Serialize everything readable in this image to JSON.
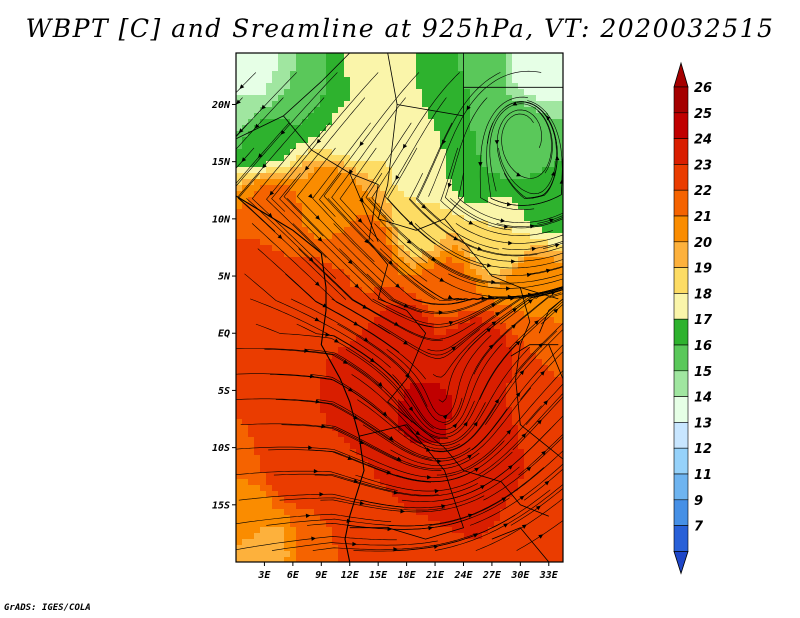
{
  "title": "WBPT [C] and Sreamline at 925hPa, VT: 2020032515",
  "footer": "GrADS: IGES/COLA",
  "map": {
    "lon_range": [
      0,
      34.5
    ],
    "lat_range": [
      -20,
      24.5
    ],
    "lat_ticks": [
      {
        "value": 20,
        "label": "20N"
      },
      {
        "value": 15,
        "label": "15N"
      },
      {
        "value": 10,
        "label": "10N"
      },
      {
        "value": 5,
        "label": "5N"
      },
      {
        "value": 0,
        "label": "EQ"
      },
      {
        "value": -5,
        "label": "5S"
      },
      {
        "value": -10,
        "label": "10S"
      },
      {
        "value": -15,
        "label": "15S"
      }
    ],
    "lon_ticks": [
      {
        "value": 3,
        "label": "3E"
      },
      {
        "value": 6,
        "label": "6E"
      },
      {
        "value": 9,
        "label": "9E"
      },
      {
        "value": 12,
        "label": "12E"
      },
      {
        "value": 15,
        "label": "15E"
      },
      {
        "value": 18,
        "label": "18E"
      },
      {
        "value": 21,
        "label": "21E"
      },
      {
        "value": 24,
        "label": "24E"
      },
      {
        "value": 27,
        "label": "27E"
      },
      {
        "value": 30,
        "label": "30E"
      },
      {
        "value": 33,
        "label": "33E"
      }
    ]
  },
  "colorbar": {
    "levels": [
      {
        "label": "26",
        "color": "#a50000"
      },
      {
        "label": "25",
        "color": "#c00000"
      },
      {
        "label": "24",
        "color": "#d91e00"
      },
      {
        "label": "23",
        "color": "#ea3c00"
      },
      {
        "label": "22",
        "color": "#f56300"
      },
      {
        "label": "21",
        "color": "#fa8c00"
      },
      {
        "label": "20",
        "color": "#fdb13c"
      },
      {
        "label": "19",
        "color": "#fddc64"
      },
      {
        "label": "18",
        "color": "#faf5aa"
      },
      {
        "label": "17",
        "color": "#2eb22e"
      },
      {
        "label": "16",
        "color": "#5ac85a"
      },
      {
        "label": "15",
        "color": "#a0e6a0"
      },
      {
        "label": "14",
        "color": "#e6ffe6"
      },
      {
        "label": "13",
        "color": "#c8e6ff"
      },
      {
        "label": "12",
        "color": "#96d2fa"
      },
      {
        "label": "11",
        "color": "#6eb4f0"
      },
      {
        "label": "9",
        "color": "#4690e6"
      },
      {
        "label": "7",
        "color": "#2860d8"
      }
    ],
    "bottom_color": "#1e46c8"
  },
  "field": {
    "blobs": [
      {
        "lon": 2,
        "lat": 23.5,
        "value": 14
      },
      {
        "lon": 0.5,
        "lat": 20,
        "value": 15
      },
      {
        "lon": 6,
        "lat": 22,
        "value": 16
      },
      {
        "lon": 9,
        "lat": 21,
        "value": 17
      },
      {
        "lon": 14,
        "lat": 23,
        "value": 18.5
      },
      {
        "lon": 12,
        "lat": 18,
        "value": 18.5
      },
      {
        "lon": 3,
        "lat": 17,
        "value": 17.5
      },
      {
        "lon": 25,
        "lat": 24,
        "value": 17
      },
      {
        "lon": 32,
        "lat": 24,
        "value": 14
      },
      {
        "lon": 29,
        "lat": 17,
        "value": 16.5
      },
      {
        "lon": 25,
        "lat": 15,
        "value": 17
      },
      {
        "lon": 33,
        "lat": 12,
        "value": 17
      },
      {
        "lon": 20,
        "lat": 14,
        "value": 18.5
      },
      {
        "lon": 19,
        "lat": 9,
        "value": 19.5
      },
      {
        "lon": 28,
        "lat": 8,
        "value": 19
      },
      {
        "lon": 4,
        "lat": 11,
        "value": 22.5
      },
      {
        "lon": 10,
        "lat": 12,
        "value": 21.5
      },
      {
        "lon": 2,
        "lat": 5,
        "value": 23.5
      },
      {
        "lon": 8,
        "lat": 3,
        "value": 23.5
      },
      {
        "lon": 14,
        "lat": 7,
        "value": 23
      },
      {
        "lon": 22,
        "lat": 4,
        "value": 22.5
      },
      {
        "lon": 31,
        "lat": 4,
        "value": 22
      },
      {
        "lon": 18,
        "lat": 0,
        "value": 24.5
      },
      {
        "lon": 25,
        "lat": -2,
        "value": 25
      },
      {
        "lon": 13,
        "lat": -5,
        "value": 24.5
      },
      {
        "lon": 20,
        "lat": -7,
        "value": 25.2
      },
      {
        "lon": 26,
        "lat": -9,
        "value": 24.5
      },
      {
        "lon": 33,
        "lat": -6,
        "value": 23
      },
      {
        "lon": 4,
        "lat": -3,
        "value": 23.3
      },
      {
        "lon": 1,
        "lat": -9,
        "value": 23
      },
      {
        "lon": 6,
        "lat": -12,
        "value": 23.5
      },
      {
        "lon": 1,
        "lat": -16,
        "value": 21.5
      },
      {
        "lon": 3,
        "lat": -19,
        "value": 20.5
      },
      {
        "lon": 9,
        "lat": -19,
        "value": 23
      },
      {
        "lon": 15,
        "lat": -14,
        "value": 24
      },
      {
        "lon": 22,
        "lat": -14,
        "value": 24.5
      },
      {
        "lon": 29,
        "lat": -15,
        "value": 24
      },
      {
        "lon": 33,
        "lat": -19,
        "value": 23.5
      },
      {
        "lon": 20,
        "lat": -19,
        "value": 23.5
      }
    ]
  }
}
